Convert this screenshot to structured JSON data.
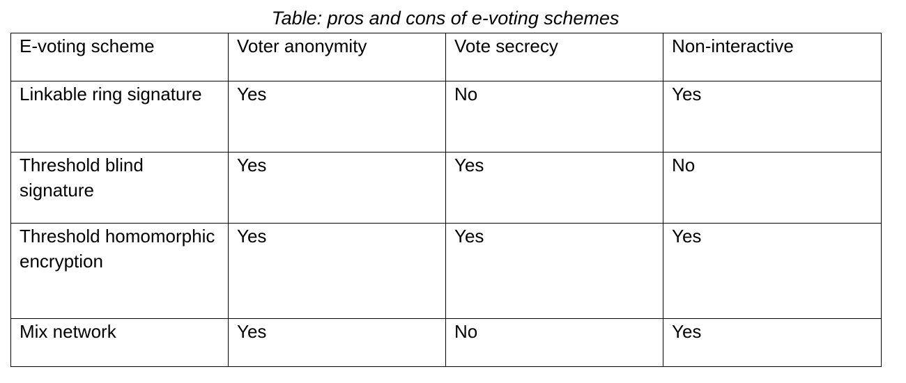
{
  "caption": "Table: pros and cons of e-voting schemes",
  "table": {
    "headers": [
      "E-voting scheme",
      "Voter anonymity",
      "Vote secrecy",
      "Non-interactive"
    ],
    "rows": [
      [
        "Linkable ring signature",
        "Yes",
        "No",
        "Yes"
      ],
      [
        "Threshold blind signature",
        "Yes",
        "Yes",
        "No"
      ],
      [
        "Threshold homomorphic encryption",
        "Yes",
        "Yes",
        "Yes"
      ],
      [
        "Mix network",
        "Yes",
        "No",
        "Yes"
      ]
    ]
  }
}
